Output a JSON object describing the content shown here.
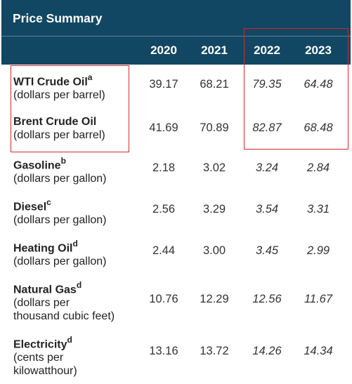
{
  "title": "Price Summary",
  "years": [
    "2020",
    "2021",
    "2022",
    "2023"
  ],
  "rows": [
    {
      "name": "WTI Crude Oil",
      "note": "a",
      "unit": [
        "(dollars per barrel)"
      ],
      "values": [
        "39.17",
        "68.21",
        "79.35",
        "64.48"
      ]
    },
    {
      "name": "Brent Crude Oil",
      "note": "",
      "unit": [
        "(dollars per barrel)"
      ],
      "values": [
        "41.69",
        "70.89",
        "82.87",
        "68.48"
      ]
    },
    {
      "name": "Gasoline",
      "note": "b",
      "unit": [
        "(dollars per gallon)"
      ],
      "values": [
        "2.18",
        "3.02",
        "3.24",
        "2.84"
      ]
    },
    {
      "name": "Diesel",
      "note": "c",
      "unit": [
        "(dollars per gallon)"
      ],
      "values": [
        "2.56",
        "3.29",
        "3.54",
        "3.31"
      ]
    },
    {
      "name": "Heating Oil",
      "note": "d",
      "unit": [
        "(dollars per gallon)"
      ],
      "values": [
        "2.44",
        "3.00",
        "3.45",
        "2.99"
      ]
    },
    {
      "name": "Natural Gas",
      "note": "d",
      "unit": [
        "(dollars per",
        "thousand cubic feet)"
      ],
      "values": [
        "10.76",
        "12.29",
        "12.56",
        "11.67"
      ]
    },
    {
      "name": "Electricity",
      "note": "d",
      "unit": [
        "(cents per",
        "kilowatthour)"
      ],
      "values": [
        "13.16",
        "13.72",
        "14.26",
        "14.34"
      ]
    }
  ],
  "highlight_color": "#d9252f",
  "header_color": "#114763"
}
